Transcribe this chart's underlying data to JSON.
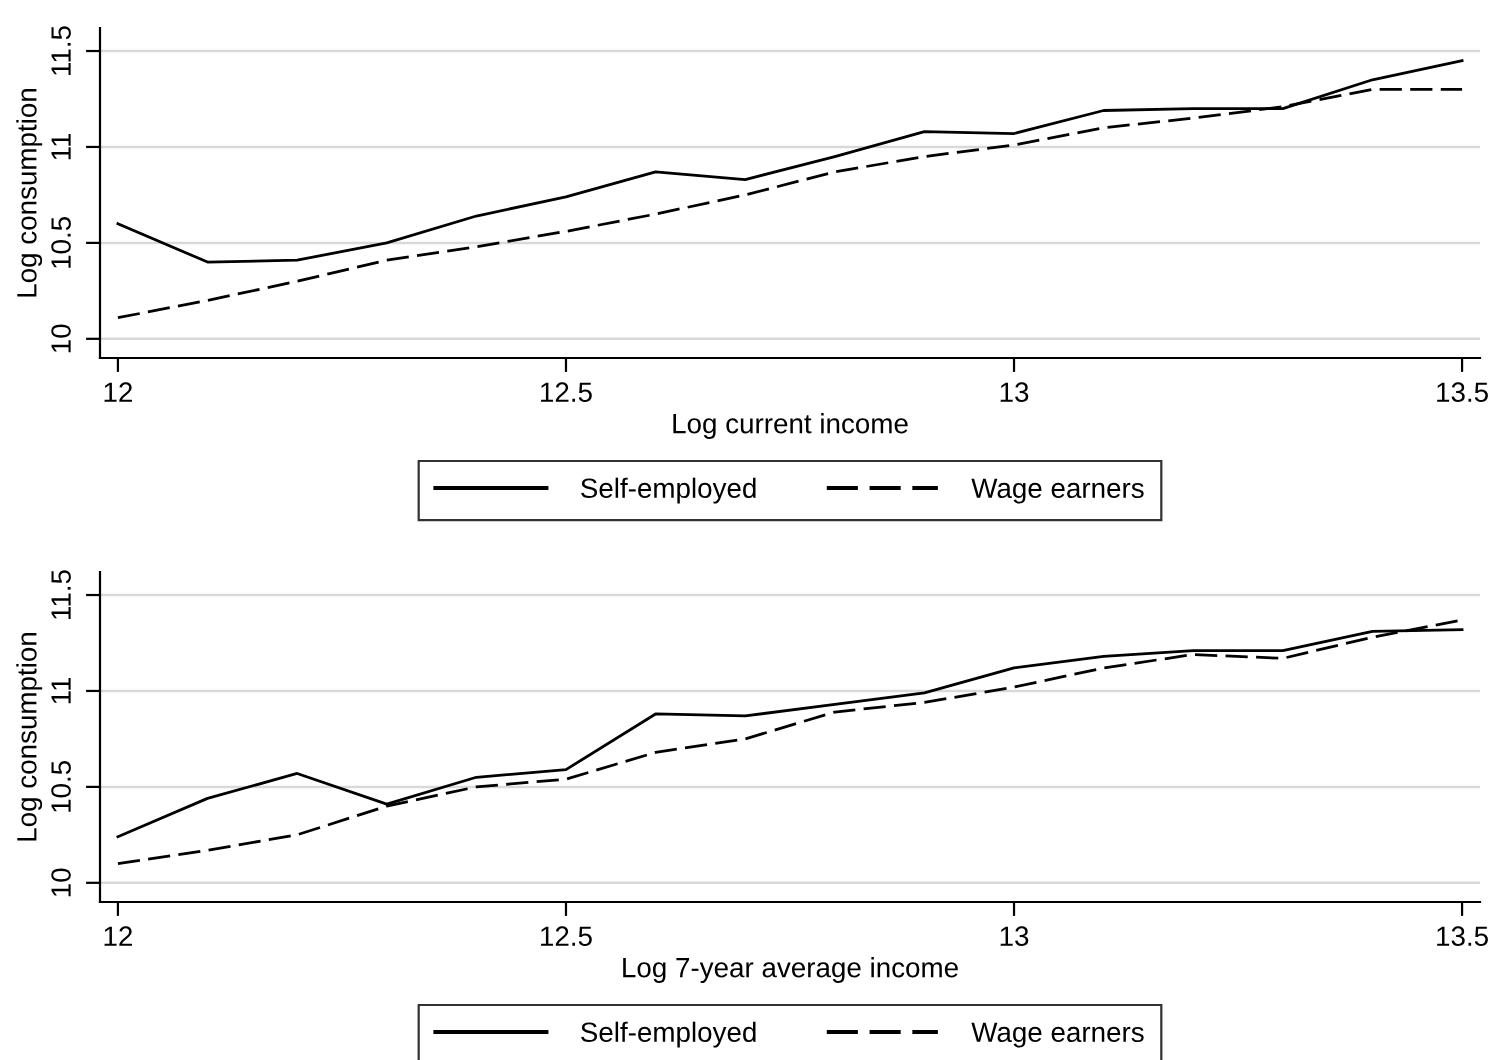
{
  "chart_data": [
    {
      "type": "line",
      "xlabel": "Log current income",
      "ylabel": "Log consumption",
      "x": [
        12.0,
        12.1,
        12.2,
        12.3,
        12.4,
        12.5,
        12.6,
        12.7,
        12.8,
        12.9,
        13.0,
        13.1,
        13.2,
        13.3,
        13.4,
        13.5
      ],
      "series": [
        {
          "name": "Self-employed",
          "color": "#000000",
          "line_style": "solid",
          "values": [
            10.6,
            10.4,
            10.41,
            10.5,
            10.64,
            10.74,
            10.87,
            10.83,
            10.95,
            11.08,
            11.07,
            11.19,
            11.2,
            11.2,
            11.35,
            11.45
          ]
        },
        {
          "name": "Wage earners",
          "color": "#000000",
          "line_style": "dashed",
          "values": [
            10.11,
            10.2,
            10.3,
            10.41,
            10.48,
            10.56,
            10.65,
            10.75,
            10.87,
            10.95,
            11.01,
            11.1,
            11.15,
            11.21,
            11.3,
            11.3
          ]
        }
      ],
      "xlim": [
        11.98,
        13.52
      ],
      "ylim": [
        9.9,
        11.62
      ],
      "xticks": [
        12,
        12.5,
        13,
        13.5
      ],
      "yticks": [
        10,
        10.5,
        11,
        11.5
      ],
      "grid": "y",
      "legend": "bottom"
    },
    {
      "type": "line",
      "xlabel": "Log 7-year average income",
      "ylabel": "Log consumption",
      "x": [
        12.0,
        12.1,
        12.2,
        12.3,
        12.4,
        12.5,
        12.6,
        12.7,
        12.8,
        12.9,
        13.0,
        13.1,
        13.2,
        13.3,
        13.4,
        13.5
      ],
      "series": [
        {
          "name": "Self-employed",
          "color": "#000000",
          "line_style": "solid",
          "values": [
            10.24,
            10.44,
            10.57,
            10.41,
            10.55,
            10.59,
            10.88,
            10.87,
            10.93,
            10.99,
            11.12,
            11.18,
            11.21,
            11.21,
            11.31,
            11.32
          ]
        },
        {
          "name": "Wage earners",
          "color": "#000000",
          "line_style": "dashed",
          "values": [
            10.1,
            10.17,
            10.25,
            10.4,
            10.5,
            10.54,
            10.68,
            10.75,
            10.89,
            10.94,
            11.02,
            11.12,
            11.19,
            11.17,
            11.28,
            11.37
          ]
        }
      ],
      "xlim": [
        11.98,
        13.52
      ],
      "ylim": [
        9.9,
        11.62
      ],
      "xticks": [
        12,
        12.5,
        13,
        13.5
      ],
      "yticks": [
        10,
        10.5,
        11,
        11.5
      ],
      "grid": "y",
      "legend": "bottom"
    }
  ]
}
